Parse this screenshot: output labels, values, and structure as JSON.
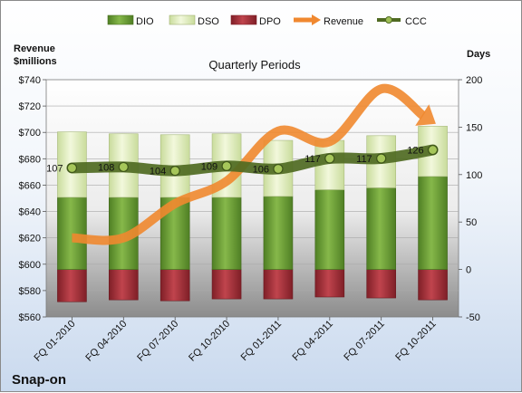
{
  "company": "Snap-on",
  "colors": {
    "dio": "#6fa13a",
    "dso": "#e4f0c4",
    "dpo": "#b0303a",
    "revenue": "#f0882f",
    "ccc": "#4f6a22",
    "plot_bg_top": "#ffffff",
    "plot_bg_bottom": "#8f8f8f"
  },
  "chart_data": {
    "type": "bar",
    "title": "Quarterly Periods",
    "categories": [
      "FQ 01-2010",
      "FQ 04-2010",
      "FQ 07-2010",
      "FQ 10-2010",
      "FQ 01-2011",
      "FQ 04-2011",
      "FQ 07-2011",
      "FQ 10-2011"
    ],
    "legend": {
      "placement": "top",
      "items": [
        {
          "key": "dio",
          "label": "DIO",
          "kind": "bar"
        },
        {
          "key": "dso",
          "label": "DSO",
          "kind": "bar"
        },
        {
          "key": "dpo",
          "label": "DPO",
          "kind": "bar"
        },
        {
          "key": "revenue",
          "label": "Revenue",
          "kind": "arrow"
        },
        {
          "key": "ccc",
          "label": "CCC",
          "kind": "line"
        }
      ]
    },
    "left_axis": {
      "label_line1": "Revenue",
      "label_line2": "$millions",
      "min": 560,
      "max": 740,
      "ticks": [
        560,
        580,
        600,
        620,
        640,
        660,
        680,
        700,
        720,
        740
      ],
      "tick_labels": [
        "$560",
        "$580",
        "$600",
        "$620",
        "$640",
        "$660",
        "$680",
        "$700",
        "$720",
        "$740"
      ]
    },
    "right_axis": {
      "label": "Days",
      "min": -50,
      "max": 200,
      "ticks": [
        -50,
        0,
        50,
        100,
        150,
        200
      ],
      "tick_labels": [
        "-50",
        "0",
        "50",
        "100",
        "150",
        "200"
      ]
    },
    "series": [
      {
        "name": "DIO",
        "axis": "right",
        "values": [
          76,
          76,
          76,
          76,
          77,
          84,
          86,
          98
        ]
      },
      {
        "name": "DSO",
        "axis": "right",
        "values": [
          69,
          67,
          66,
          67,
          59,
          52,
          55,
          53
        ]
      },
      {
        "name": "DPO",
        "axis": "right",
        "values": [
          -34,
          -32,
          -33,
          -31,
          -31,
          -29,
          -30,
          -32
        ]
      },
      {
        "name": "Revenue",
        "axis": "left",
        "values": [
          620,
          620,
          646,
          663,
          701,
          693,
          733,
          708
        ]
      },
      {
        "name": "CCC",
        "axis": "right",
        "values": [
          107,
          108,
          104,
          109,
          106,
          117,
          117,
          126
        ]
      }
    ],
    "ccc_labels": [
      "107",
      "108",
      "104",
      "109",
      "106",
      "117",
      "117",
      "126"
    ],
    "grid": true
  }
}
